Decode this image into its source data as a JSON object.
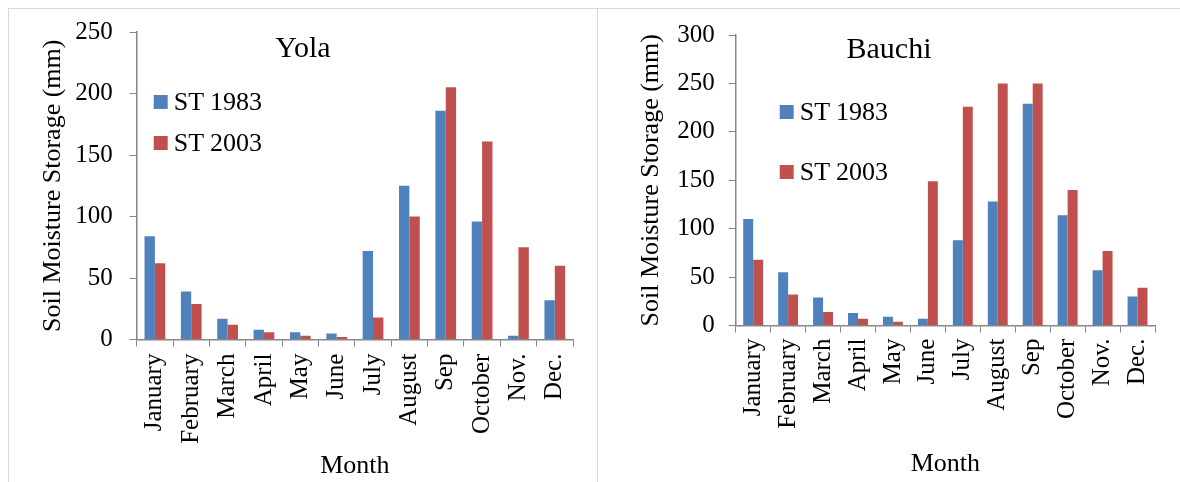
{
  "chart_data": [
    {
      "type": "bar",
      "title": "Yola",
      "xlabel": "Month",
      "ylabel": "Soil Moisture Storage (mm)",
      "categories": [
        "January",
        "February",
        "March",
        "April",
        "May",
        "June",
        "July",
        "August",
        "Sep",
        "October",
        "Nov.",
        "Dec."
      ],
      "series": [
        {
          "name": "ST 1983",
          "color": "#4f81bd",
          "values": [
            84,
            39,
            17,
            8,
            6,
            5,
            72,
            125,
            186,
            96,
            3,
            32
          ]
        },
        {
          "name": "ST 2003",
          "color": "#c0504d",
          "values": [
            62,
            29,
            12,
            6,
            3,
            2,
            18,
            100,
            205,
            161,
            75,
            60
          ]
        }
      ],
      "ylim": [
        0,
        250
      ],
      "yticks": [
        0,
        50,
        100,
        150,
        200,
        250
      ],
      "legend": "top left"
    },
    {
      "type": "bar",
      "title": "Bauchi",
      "xlabel": "Month",
      "ylabel": "Soil Moisture Storage (mm)",
      "categories": [
        "January",
        "February",
        "March",
        "April",
        "May",
        "June",
        "July",
        "August",
        "Sep",
        "October",
        "Nov.",
        "Dec."
      ],
      "series": [
        {
          "name": "ST 1983",
          "color": "#4f81bd",
          "values": [
            110,
            55,
            29,
            13,
            9,
            7,
            88,
            128,
            229,
            114,
            57,
            30
          ]
        },
        {
          "name": "ST 2003",
          "color": "#c0504d",
          "values": [
            68,
            32,
            14,
            7,
            4,
            149,
            226,
            250,
            250,
            140,
            77,
            39
          ]
        }
      ],
      "ylim": [
        0,
        300
      ],
      "yticks": [
        0,
        50,
        100,
        150,
        200,
        250,
        300
      ],
      "legend": "top left"
    }
  ]
}
